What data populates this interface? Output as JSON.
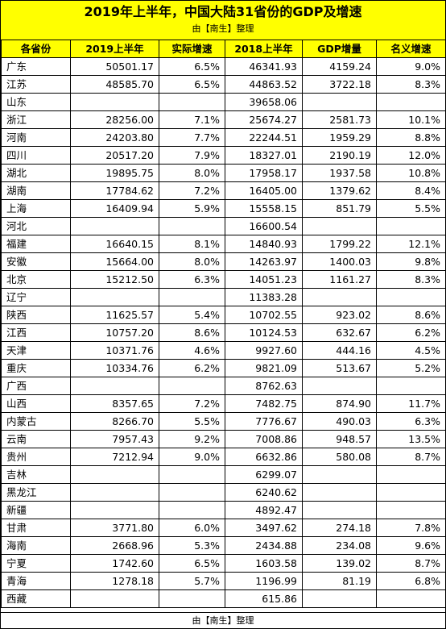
{
  "title": "2019年上半年，中国大陆31省份的GDP及增速",
  "subtitle": "由【南生】整理",
  "footer": "由【南生】整理",
  "colors": {
    "header_bg": "#ffff00",
    "border": "#000000"
  },
  "headers": [
    "各省份",
    "2019上半年",
    "实际增速",
    "2018上半年",
    "GDP增量",
    "名义增速"
  ],
  "rows": [
    [
      "广东",
      "50501.17",
      "6.5%",
      "46341.93",
      "4159.24",
      "9.0%"
    ],
    [
      "江苏",
      "48585.70",
      "6.5%",
      "44863.52",
      "3722.18",
      "8.3%"
    ],
    [
      "山东",
      "",
      "",
      "39658.06",
      "",
      ""
    ],
    [
      "浙江",
      "28256.00",
      "7.1%",
      "25674.27",
      "2581.73",
      "10.1%"
    ],
    [
      "河南",
      "24203.80",
      "7.7%",
      "22244.51",
      "1959.29",
      "8.8%"
    ],
    [
      "四川",
      "20517.20",
      "7.9%",
      "18327.01",
      "2190.19",
      "12.0%"
    ],
    [
      "湖北",
      "19895.75",
      "8.0%",
      "17958.17",
      "1937.58",
      "10.8%"
    ],
    [
      "湖南",
      "17784.62",
      "7.2%",
      "16405.00",
      "1379.62",
      "8.4%"
    ],
    [
      "上海",
      "16409.94",
      "5.9%",
      "15558.15",
      "851.79",
      "5.5%"
    ],
    [
      "河北",
      "",
      "",
      "16600.54",
      "",
      ""
    ],
    [
      "福建",
      "16640.15",
      "8.1%",
      "14840.93",
      "1799.22",
      "12.1%"
    ],
    [
      "安徽",
      "15664.00",
      "8.0%",
      "14263.97",
      "1400.03",
      "9.8%"
    ],
    [
      "北京",
      "15212.50",
      "6.3%",
      "14051.23",
      "1161.27",
      "8.3%"
    ],
    [
      "辽宁",
      "",
      "",
      "11383.28",
      "",
      ""
    ],
    [
      "陕西",
      "11625.57",
      "5.4%",
      "10702.55",
      "923.02",
      "8.6%"
    ],
    [
      "江西",
      "10757.20",
      "8.6%",
      "10124.53",
      "632.67",
      "6.2%"
    ],
    [
      "天津",
      "10371.76",
      "4.6%",
      "9927.60",
      "444.16",
      "4.5%"
    ],
    [
      "重庆",
      "10334.76",
      "6.2%",
      "9821.09",
      "513.67",
      "5.2%"
    ],
    [
      "广西",
      "",
      "",
      "8762.63",
      "",
      ""
    ],
    [
      "山西",
      "8357.65",
      "7.2%",
      "7482.75",
      "874.90",
      "11.7%"
    ],
    [
      "内蒙古",
      "8266.70",
      "5.5%",
      "7776.67",
      "490.03",
      "6.3%"
    ],
    [
      "云南",
      "7957.43",
      "9.2%",
      "7008.86",
      "948.57",
      "13.5%"
    ],
    [
      "贵州",
      "7212.94",
      "9.0%",
      "6632.86",
      "580.08",
      "8.7%"
    ],
    [
      "吉林",
      "",
      "",
      "6299.07",
      "",
      ""
    ],
    [
      "黑龙江",
      "",
      "",
      "6240.62",
      "",
      ""
    ],
    [
      "新疆",
      "",
      "",
      "4892.47",
      "",
      ""
    ],
    [
      "甘肃",
      "3771.80",
      "6.0%",
      "3497.62",
      "274.18",
      "7.8%"
    ],
    [
      "海南",
      "2668.96",
      "5.3%",
      "2434.88",
      "234.08",
      "9.6%"
    ],
    [
      "宁夏",
      "1742.60",
      "6.5%",
      "1603.58",
      "139.02",
      "8.7%"
    ],
    [
      "青海",
      "1278.18",
      "5.7%",
      "1196.99",
      "81.19",
      "6.8%"
    ],
    [
      "西藏",
      "",
      "",
      "615.86",
      "",
      ""
    ]
  ]
}
